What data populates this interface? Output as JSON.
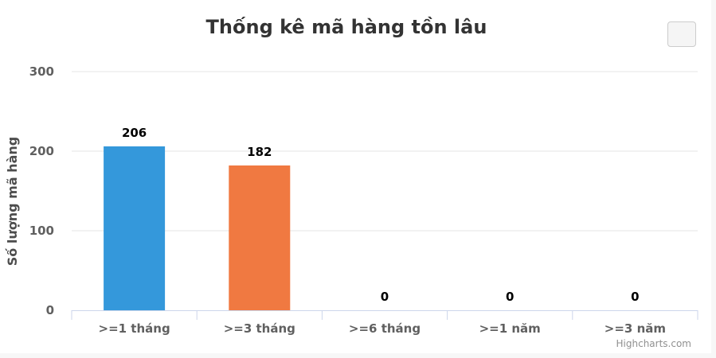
{
  "chart_data": {
    "type": "bar",
    "title": "Thống kê mã hàng tồn lâu",
    "ylabel": "Số lượng mã hàng",
    "xlabel": "",
    "categories": [
      ">=1 tháng",
      ">=3 tháng",
      ">=6 tháng",
      ">=1 năm",
      ">=3 năm"
    ],
    "values": [
      206,
      182,
      0,
      0,
      0
    ],
    "colors": [
      "#3498db",
      "#f07941",
      "#3498db",
      "#3498db",
      "#3498db"
    ],
    "ylim": [
      0,
      300
    ],
    "yticks": [
      0,
      100,
      200,
      300
    ],
    "grid": true,
    "data_labels": true
  },
  "credits": "Highcharts.com",
  "menu_button": {
    "icon": "hamburger-menu-icon"
  }
}
